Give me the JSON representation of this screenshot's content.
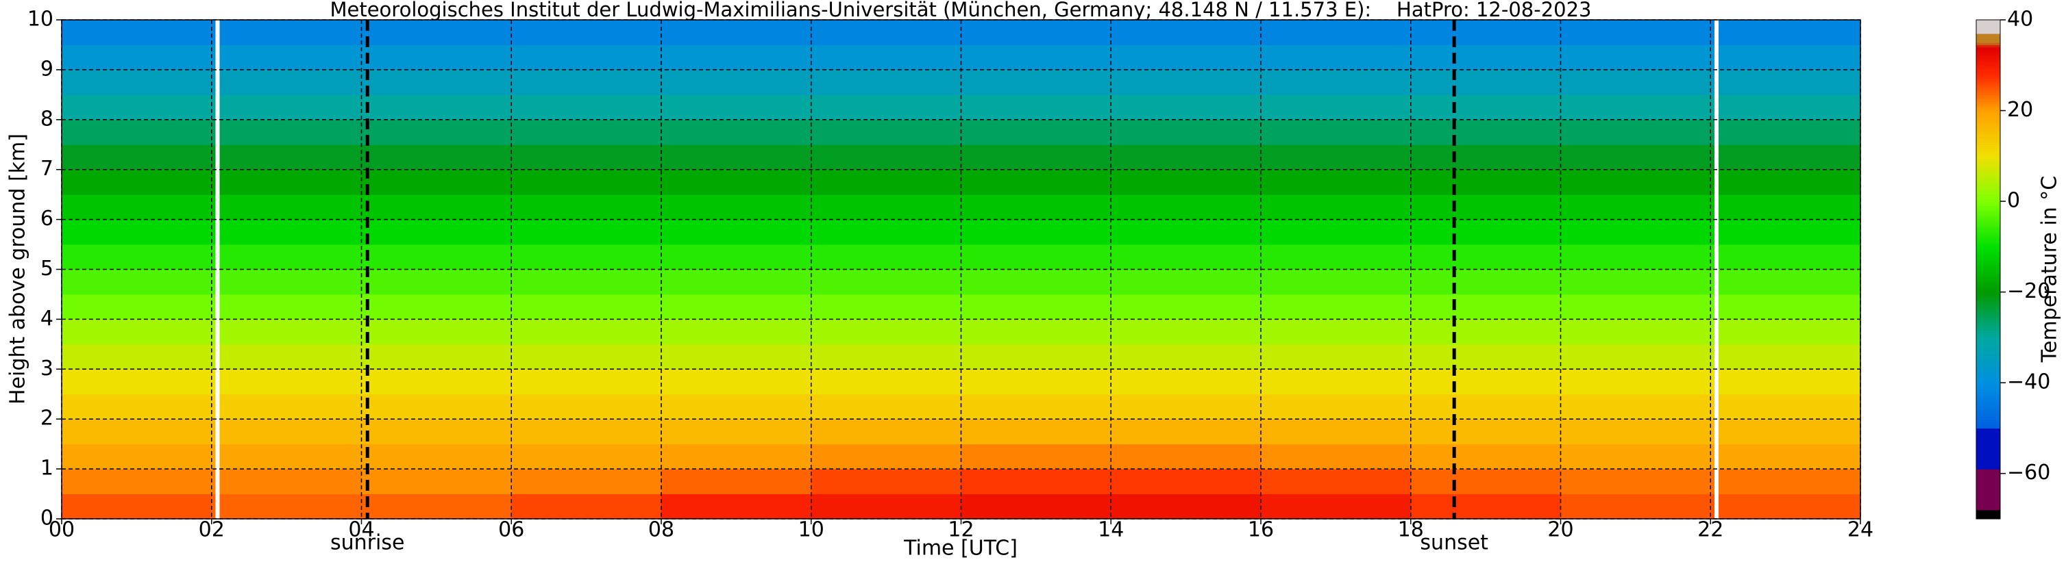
{
  "chart_data": {
    "type": "heatmap",
    "title": "Meteorologisches Institut der Ludwig-Maximilians-Universität (München, Germany; 48.148 N / 11.573 E):    HatPro: 12-08-2023",
    "x_label": "Time [UTC]",
    "y_label": "Height above ground [km]",
    "xlim": [
      0,
      24
    ],
    "ylim": [
      0,
      10
    ],
    "xticks": [
      {
        "value": 0,
        "label": "00"
      },
      {
        "value": 2,
        "label": "02"
      },
      {
        "value": 4,
        "label": "04"
      },
      {
        "value": 6,
        "label": "06"
      },
      {
        "value": 8,
        "label": "08"
      },
      10,
      12,
      14,
      16,
      18,
      20,
      22,
      24
    ],
    "yticks": [
      0,
      1,
      2,
      3,
      4,
      5,
      6,
      7,
      8,
      9,
      10
    ],
    "grid": true,
    "x": [
      0,
      2,
      4,
      6,
      8,
      10,
      12,
      14,
      16,
      18,
      20,
      22,
      24
    ],
    "y": [
      0,
      0.5,
      1,
      1.5,
      2,
      2.5,
      3,
      3.5,
      4,
      4.5,
      5,
      5.5,
      6,
      6.5,
      7,
      7.5,
      8,
      8.5,
      9,
      9.5,
      10
    ],
    "z": [
      [
        25,
        24,
        24,
        26,
        29,
        30,
        31,
        31,
        30,
        27,
        25,
        25
      ],
      [
        22,
        22,
        21,
        22,
        24,
        26,
        27,
        27,
        26,
        24,
        23,
        23
      ],
      [
        19,
        19,
        19,
        19,
        20,
        21,
        22,
        22,
        21,
        20,
        19,
        19
      ],
      [
        16,
        16,
        16,
        16,
        16,
        17,
        17,
        17,
        17,
        16,
        16,
        16
      ],
      [
        13,
        13,
        13,
        13,
        13,
        13,
        13,
        13,
        13,
        13,
        13,
        13
      ],
      [
        10,
        10,
        10,
        10,
        10,
        10,
        10,
        10,
        10,
        10,
        10,
        10
      ],
      [
        6,
        6,
        6,
        6,
        6,
        6,
        6,
        6,
        6,
        6,
        6,
        6
      ],
      [
        3,
        3,
        3,
        3,
        3,
        3,
        3,
        3,
        3,
        3,
        3,
        3
      ],
      [
        -1,
        -1,
        -1,
        -1,
        -1,
        -1,
        -1,
        -1,
        -1,
        -1,
        -1,
        -1
      ],
      [
        -4,
        -4,
        -4,
        -4,
        -4,
        -4,
        -4,
        -4,
        -4,
        -4,
        -4,
        -4
      ],
      [
        -7,
        -7,
        -7,
        -7,
        -7,
        -7,
        -7,
        -7,
        -7,
        -7,
        -7,
        -7
      ],
      [
        -11,
        -11,
        -11,
        -11,
        -11,
        -11,
        -11,
        -11,
        -11,
        -11,
        -11,
        -11
      ],
      [
        -14,
        -14,
        -14,
        -14,
        -14,
        -14,
        -14,
        -14,
        -14,
        -14,
        -14,
        -14
      ],
      [
        -18,
        -18,
        -18,
        -18,
        -18,
        -18,
        -18,
        -18,
        -18,
        -18,
        -18,
        -18
      ],
      [
        -22,
        -22,
        -22,
        -22,
        -22,
        -22,
        -22,
        -22,
        -22,
        -22,
        -22,
        -22
      ],
      [
        -26,
        -26,
        -26,
        -26,
        -26,
        -26,
        -26,
        -26,
        -26,
        -26,
        -26,
        -26
      ],
      [
        -30,
        -30,
        -30,
        -30,
        -30,
        -30,
        -30,
        -30,
        -30,
        -30,
        -30,
        -30
      ],
      [
        -34,
        -34,
        -34,
        -34,
        -34,
        -34,
        -34,
        -34,
        -34,
        -34,
        -34,
        -34
      ],
      [
        -38,
        -38,
        -38,
        -38,
        -38,
        -38,
        -38,
        -38,
        -38,
        -38,
        -38,
        -38
      ],
      [
        -42,
        -42,
        -42,
        -42,
        -42,
        -42,
        -42,
        -42,
        -42,
        -42,
        -42,
        -42
      ]
    ],
    "data_gaps": [
      2.08,
      22.08
    ],
    "gap_color": "#ffffff",
    "annotations": [
      {
        "label": "sunrise",
        "x": 4.08
      },
      {
        "label": "sunset",
        "x": 18.58
      }
    ],
    "colorbar": {
      "label": "Temperature in °C",
      "zlim": [
        -70,
        40
      ],
      "ticks": [
        {
          "value": -60,
          "label": "−60"
        },
        {
          "value": -40,
          "label": "−40"
        },
        {
          "value": -20,
          "label": "−20"
        },
        0,
        20,
        40
      ],
      "colorscale": [
        [
          -70,
          "#000000"
        ],
        [
          -68,
          "#000000"
        ],
        [
          -68,
          "#780050"
        ],
        [
          -59,
          "#780050"
        ],
        [
          -59,
          "#0010c0"
        ],
        [
          -50,
          "#0010c0"
        ],
        [
          -50,
          "#0060e0"
        ],
        [
          -40,
          "#0090e0"
        ],
        [
          -30,
          "#00a8a0"
        ],
        [
          -20,
          "#009a00"
        ],
        [
          -10,
          "#00e000"
        ],
        [
          0,
          "#80ff00"
        ],
        [
          10,
          "#f0e000"
        ],
        [
          20,
          "#ffa000"
        ],
        [
          28,
          "#ff2800"
        ],
        [
          34,
          "#e00000"
        ],
        [
          35,
          "#c08020"
        ],
        [
          37,
          "#c08020"
        ],
        [
          37,
          "#d8d0d0"
        ],
        [
          40,
          "#d8d0d0"
        ]
      ]
    }
  }
}
